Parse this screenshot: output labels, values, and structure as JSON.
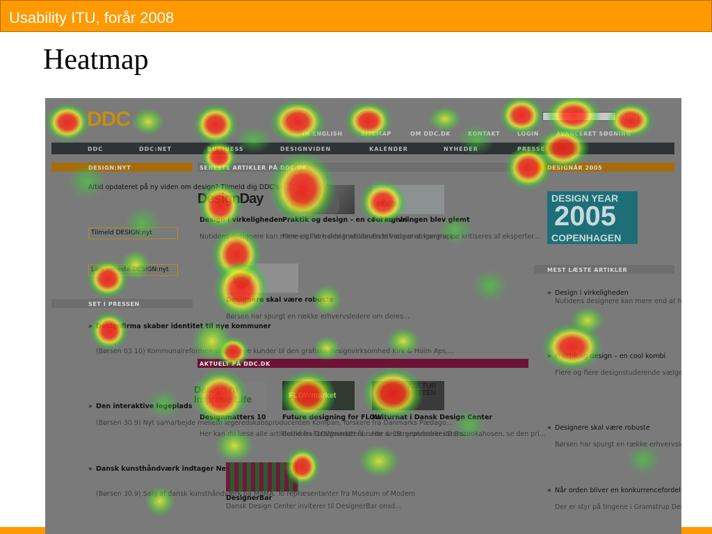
{
  "slide": {
    "header": "Usability ITU, forår 2008",
    "title": "Heatmap"
  },
  "site": {
    "logo": "DDC",
    "search_button": "SØG",
    "top_links": [
      "IN ENGLISH",
      "SITEMAP",
      "OM DDC.DK",
      "KONTAKT",
      "LOGIN",
      "AVANCERET SØGNING"
    ],
    "nav": [
      "DDC",
      "DDC:NET",
      "BUSINESS",
      "DESIGNVIDEN",
      "KALENDER",
      "NYHEDER",
      "PRESSE"
    ],
    "left": {
      "section1_title": "DESIGN:NYT",
      "intro": "Altid opdateret på ny\nviden om design?\nTilmeld dig DDC's\ngratis nyhedsbrev:",
      "signup_box": "Tilmeld DESIGN:nyt",
      "read_box": "Læs seneste\nDESIGN:nyt",
      "section2_title": "SET I PRESSEN",
      "press": [
        {
          "title": "Designfirma skaber\nidentitet til nye\nkommuner",
          "body": "(Børsen 03.10)\nKommunalreformen\nskaber nye kunder til\nden grafiske\ndesignvirksomhed\nKirk & Holm Aps,..."
        },
        {
          "title": "Den interaktive\nlegeplads",
          "body": "(Børsen 30.9) Nyt\nsamarbejde mellem\nlegeredskabsproducenten\nKompan, forskere fra\nDanmarks Pædago..."
        },
        {
          "title": "Dansk\nkunsthåndværk\nindtager New York",
          "body": "(Børsen 30.9) Salg af\ndansk kunsthåndværk\npå MoMA. To\nrepræsentanter fra\nMuseum of Modern"
        }
      ]
    },
    "center": {
      "latest_title": "SENESTE ARTIKLER PÅ DDC.DK",
      "designday_logo": "DesignDay",
      "index_logo": "INDEX:",
      "articles": [
        {
          "title": "Design i\nvirkeligheden",
          "body": "Nutidens\ndesignere kan\nmere end at\nholde tradition..."
        },
        {
          "title": "Praktik og design\n– en cool kombi",
          "body": "Flere og flere\ndesignstuderende\nvælger at komme\ni..."
        },
        {
          "title": "Formgivningen\nblev glemt",
          "body": "En tilfreds\narrangørgruppe\nkritiseres af\neksperter..."
        },
        {
          "title": "Designere skal\nvære robuste",
          "body": "Børsen har spurgt\nen række\nerhvervsledere\nom deres..."
        }
      ],
      "current_title": "AKTUELT PÅ DDC.DK",
      "dtil_logo": "Design to\nImprove Life",
      "flow_logo": "FLOWmarket",
      "kultur_logo": "KULTUR\nNATTEN",
      "current": [
        {
          "title": "Designmatters\n10",
          "body": "Her kan du læse\nalle artiklerne fra\nDesignmatters ..."
        },
        {
          "title": "Future designing\nfor FLOW",
          "body": "Butikken\nFLOWmarket\nåbnede d. 19.\nseptember i Dans..."
        },
        {
          "title": "Kulturnat i Dansk\nDesign Center",
          "body": "Hør\nundergrundsorkeste\nBazookahosen, se\nden pri..."
        },
        {
          "title": "DesignerBar",
          "body": "Dansk Design\nCenter inviterer\ntil DesignerBar\nonsd..."
        }
      ]
    },
    "right": {
      "section1_title": "DESIGNÅR 2005",
      "banner": [
        "DESIGN YEAR",
        "2005",
        "COPENHAGEN"
      ],
      "section2_title": "MEST LÆSTE ARTIKLER",
      "most_read": [
        {
          "title": "Design i virkeligheden",
          "body": "Nutidens designere\nkan mere end at\nholde traditionen i\nhævd. DesignDay er\nen samlet\npræsentation af ..."
        },
        {
          "title": "Praktik og design – en\ncool kombi",
          "body": "Flere og flere\ndesignstuderende\nvælger at komme i\npraktik. For Mathias\nLerche fra Danmarks\nDesignsk..."
        },
        {
          "title": "Designere skal være\nrobuste",
          "body": "Børsen har spurgt en\nrække erhvervsledere\nom deres forhold til\ndesign - her adm.\ndirektør i Københav..."
        },
        {
          "title": "Når orden bliver en\nkonkurrencefordel",
          "body": "Der er styr på tingene\ni Gramstrup Design,\nder er en af blot otte\nISO-certificerede"
        }
      ]
    }
  },
  "colors": {
    "header_orange": "#ff9900",
    "heat_red": "#ff1a1a",
    "heat_yellow": "#f5ff2a",
    "heat_green": "#33cc33"
  }
}
